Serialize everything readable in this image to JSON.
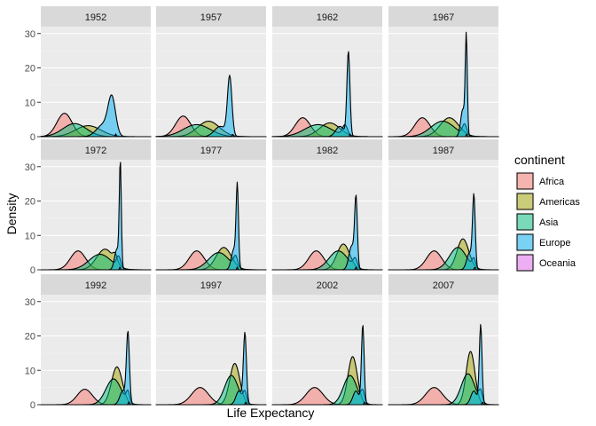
{
  "chart_data": {
    "type": "area",
    "subtype": "faceted density ridges",
    "xlabel": "Life Expectancy",
    "ylabel": "Density",
    "ylim": [
      0,
      32
    ],
    "yticks": [
      0,
      10,
      20,
      30
    ],
    "x_range": [
      25,
      90
    ],
    "x_tick_labels_shown": false,
    "grid": true,
    "legend": {
      "title": "continent",
      "placement": "right"
    },
    "series": [
      {
        "name": "Africa",
        "color": "#F8766D"
      },
      {
        "name": "Americas",
        "color": "#A3A500"
      },
      {
        "name": "Asia",
        "color": "#00BF7D"
      },
      {
        "name": "Europe",
        "color": "#00B0F6"
      },
      {
        "name": "Oceania",
        "color": "#E76BF3"
      }
    ],
    "facets": [
      {
        "label": "1952",
        "curves": [
          {
            "series": "Africa",
            "peaks": [
              [
                39,
                6.8,
                4.5
              ]
            ]
          },
          {
            "series": "Americas",
            "peaks": [
              [
                53,
                3.2,
                7.5
              ]
            ]
          },
          {
            "series": "Asia",
            "peaks": [
              [
                45,
                3.8,
                7
              ]
            ]
          },
          {
            "series": "Europe",
            "peaks": [
              [
                67,
                10.5,
                2.2
              ],
              [
                62,
                3.5,
                4
              ]
            ]
          },
          {
            "series": "Oceania",
            "peaks": [
              [
                69.3,
                0.8,
                0.3
              ]
            ]
          }
        ]
      },
      {
        "label": "1957",
        "curves": [
          {
            "series": "Africa",
            "peaks": [
              [
                41,
                6,
                4.5
              ]
            ]
          },
          {
            "series": "Americas",
            "peaks": [
              [
                56,
                4.5,
                6.5
              ]
            ]
          },
          {
            "series": "Asia",
            "peaks": [
              [
                49,
                3.5,
                8
              ]
            ]
          },
          {
            "series": "Europe",
            "peaks": [
              [
                68.5,
                17,
                1.3
              ],
              [
                63,
                3,
                3.5
              ]
            ]
          },
          {
            "series": "Oceania",
            "peaks": [
              [
                70.3,
                0.8,
                0.3
              ]
            ]
          }
        ]
      },
      {
        "label": "1962",
        "curves": [
          {
            "series": "Africa",
            "peaks": [
              [
                43,
                5.5,
                4.5
              ]
            ]
          },
          {
            "series": "Americas",
            "peaks": [
              [
                59,
                4,
                6
              ]
            ]
          },
          {
            "series": "Asia",
            "peaks": [
              [
                52,
                3.5,
                8
              ],
              [
                68,
                3,
                1.5
              ]
            ]
          },
          {
            "series": "Europe",
            "peaks": [
              [
                70,
                24.5,
                0.9
              ],
              [
                65,
                3,
                2.5
              ]
            ]
          },
          {
            "series": "Oceania",
            "peaks": [
              [
                71,
                0.8,
                0.3
              ]
            ]
          }
        ]
      },
      {
        "label": "1967",
        "curves": [
          {
            "series": "Africa",
            "peaks": [
              [
                45,
                5.5,
                4.5
              ]
            ]
          },
          {
            "series": "Americas",
            "peaks": [
              [
                61,
                5.5,
                5.5
              ]
            ]
          },
          {
            "series": "Asia",
            "peaks": [
              [
                57,
                4.5,
                7
              ],
              [
                70,
                3,
                1.2
              ]
            ]
          },
          {
            "series": "Europe",
            "peaks": [
              [
                71,
                28,
                0.6
              ],
              [
                69,
                8,
                1.3
              ]
            ]
          },
          {
            "series": "Oceania",
            "peaks": [
              [
                71.2,
                0.8,
                0.3
              ]
            ]
          }
        ]
      },
      {
        "label": "1972",
        "curves": [
          {
            "series": "Africa",
            "peaks": [
              [
                47,
                5.5,
                4.5
              ]
            ]
          },
          {
            "series": "Americas",
            "peaks": [
              [
                63,
                6,
                5
              ],
              [
                69,
                2,
                1.2
              ]
            ]
          },
          {
            "series": "Asia",
            "peaks": [
              [
                60,
                4.5,
                6.5
              ],
              [
                71,
                3,
                1.2
              ]
            ]
          },
          {
            "series": "Europe",
            "peaks": [
              [
                72,
                30,
                0.6
              ],
              [
                70,
                6,
                1.4
              ]
            ]
          },
          {
            "series": "Oceania",
            "peaks": [
              [
                71.8,
                0.8,
                0.3
              ]
            ]
          }
        ]
      },
      {
        "label": "1977",
        "curves": [
          {
            "series": "Africa",
            "peaks": [
              [
                49,
                5.5,
                4.5
              ]
            ]
          },
          {
            "series": "Americas",
            "peaks": [
              [
                65,
                6.5,
                4.5
              ]
            ]
          },
          {
            "series": "Asia",
            "peaks": [
              [
                62,
                5,
                6
              ],
              [
                72,
                3,
                1.2
              ]
            ]
          },
          {
            "series": "Europe",
            "peaks": [
              [
                73,
                23,
                0.7
              ],
              [
                71,
                6,
                1.5
              ]
            ]
          },
          {
            "series": "Oceania",
            "peaks": [
              [
                73,
                0.8,
                0.3
              ]
            ]
          }
        ]
      },
      {
        "label": "1982",
        "curves": [
          {
            "series": "Africa",
            "peaks": [
              [
                51,
                5.5,
                4.5
              ]
            ]
          },
          {
            "series": "Americas",
            "peaks": [
              [
                67,
                7.5,
                3.8
              ]
            ]
          },
          {
            "series": "Asia",
            "peaks": [
              [
                64,
                5.5,
                5.5
              ],
              [
                74,
                2.5,
                1.2
              ]
            ]
          },
          {
            "series": "Europe",
            "peaks": [
              [
                74.5,
                19.5,
                0.8
              ],
              [
                72,
                7,
                1.7
              ]
            ]
          },
          {
            "series": "Oceania",
            "peaks": [
              [
                74.5,
                0.8,
                0.3
              ]
            ]
          }
        ]
      },
      {
        "label": "1987",
        "curves": [
          {
            "series": "Africa",
            "peaks": [
              [
                52,
                5.5,
                4.5
              ]
            ]
          },
          {
            "series": "Americas",
            "peaks": [
              [
                69,
                9,
                3.5
              ]
            ]
          },
          {
            "series": "Asia",
            "peaks": [
              [
                66,
                6.5,
                5
              ],
              [
                75.5,
                2.5,
                1
              ]
            ]
          },
          {
            "series": "Europe",
            "peaks": [
              [
                75.5,
                20.5,
                0.8
              ],
              [
                73,
                5,
                1.7
              ]
            ]
          },
          {
            "series": "Oceania",
            "peaks": [
              [
                76,
                0.8,
                0.3
              ]
            ]
          }
        ]
      },
      {
        "label": "1992",
        "curves": [
          {
            "series": "Africa",
            "peaks": [
              [
                51,
                4.5,
                4.5
              ]
            ]
          },
          {
            "series": "Americas",
            "peaks": [
              [
                70,
                11,
                3.2
              ]
            ]
          },
          {
            "series": "Asia",
            "peaks": [
              [
                68,
                7.5,
                4.5
              ],
              [
                76.5,
                3,
                1
              ]
            ]
          },
          {
            "series": "Europe",
            "peaks": [
              [
                76.5,
                20.5,
                0.9
              ],
              [
                73.5,
                4,
                1.8
              ]
            ]
          },
          {
            "series": "Oceania",
            "peaks": [
              [
                77,
                0.8,
                0.3
              ]
            ]
          }
        ]
      },
      {
        "label": "1997",
        "curves": [
          {
            "series": "Africa",
            "peaks": [
              [
                51,
                5,
                5
              ]
            ]
          },
          {
            "series": "Americas",
            "peaks": [
              [
                71.5,
                12,
                3
              ]
            ]
          },
          {
            "series": "Asia",
            "peaks": [
              [
                69.5,
                8.5,
                4
              ],
              [
                77.5,
                3,
                1
              ]
            ]
          },
          {
            "series": "Europe",
            "peaks": [
              [
                77.5,
                20.5,
                0.9
              ],
              [
                74,
                4,
                1.8
              ]
            ]
          },
          {
            "series": "Oceania",
            "peaks": [
              [
                78,
                0.8,
                0.3
              ]
            ]
          }
        ]
      },
      {
        "label": "2002",
        "curves": [
          {
            "series": "Africa",
            "peaks": [
              [
                50,
                5,
                5
              ]
            ]
          },
          {
            "series": "Americas",
            "peaks": [
              [
                72.5,
                14,
                2.8
              ]
            ]
          },
          {
            "series": "Asia",
            "peaks": [
              [
                71,
                8.5,
                4
              ],
              [
                78.5,
                3,
                1
              ]
            ]
          },
          {
            "series": "Europe",
            "peaks": [
              [
                78.5,
                23,
                0.8
              ],
              [
                74.5,
                4,
                1.8
              ]
            ]
          },
          {
            "series": "Oceania",
            "peaks": [
              [
                79.5,
                0.8,
                0.3
              ]
            ]
          }
        ]
      },
      {
        "label": "2007",
        "curves": [
          {
            "series": "Africa",
            "peaks": [
              [
                52,
                5,
                5
              ]
            ]
          },
          {
            "series": "Americas",
            "peaks": [
              [
                73.5,
                15.5,
                2.6
              ]
            ]
          },
          {
            "series": "Asia",
            "peaks": [
              [
                72,
                9,
                4
              ],
              [
                79.5,
                3,
                1
              ]
            ]
          },
          {
            "series": "Europe",
            "peaks": [
              [
                79.5,
                23,
                0.8
              ],
              [
                75.5,
                4,
                1.8
              ]
            ]
          },
          {
            "series": "Oceania",
            "peaks": [
              [
                80.5,
                0.8,
                0.3
              ]
            ]
          }
        ]
      }
    ]
  }
}
